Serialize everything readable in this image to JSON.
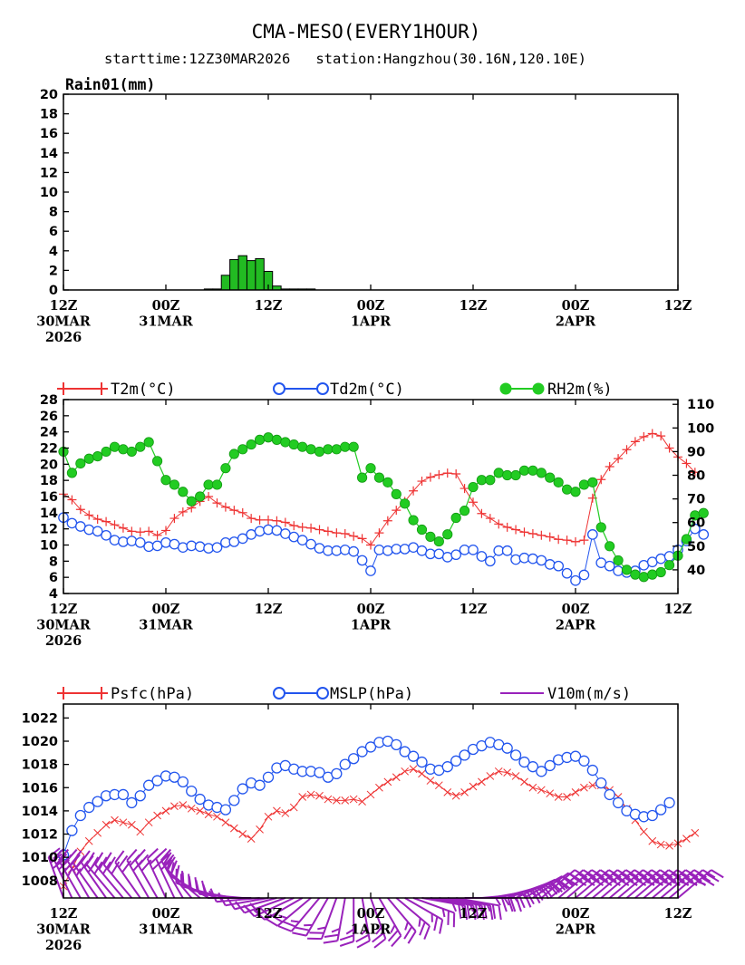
{
  "header": {
    "title": "CMA-MESO(EVERY1HOUR)",
    "subtitle": "starttime:12Z30MAR2026   station:Hangzhou(30.16N,120.10E)"
  },
  "colors": {
    "t2m": "#ee3333",
    "td2m": "#2255ee",
    "rh2m": "#22cc22",
    "rain": "#22bb22",
    "wind": "#9922bb",
    "axis": "#000000"
  },
  "x_ticks": [
    {
      "hour": 0,
      "lines": [
        "12Z",
        "30MAR",
        "2026"
      ]
    },
    {
      "hour": 12,
      "lines": [
        "00Z",
        "31MAR"
      ]
    },
    {
      "hour": 24,
      "lines": [
        "12Z"
      ]
    },
    {
      "hour": 36,
      "lines": [
        "00Z",
        "1APR"
      ]
    },
    {
      "hour": 48,
      "lines": [
        "12Z"
      ]
    },
    {
      "hour": 60,
      "lines": [
        "00Z",
        "2APR"
      ]
    },
    {
      "hour": 72,
      "lines": [
        "12Z"
      ]
    }
  ],
  "chart_data": [
    {
      "id": "rain",
      "type": "bar",
      "title": "Rain01(mm)",
      "x_hours": [
        17,
        18,
        19,
        20,
        21,
        22,
        23,
        24,
        25,
        26,
        27,
        28,
        29
      ],
      "values": [
        0.1,
        0.1,
        1.5,
        3.1,
        3.5,
        3.0,
        3.2,
        1.9,
        0.4,
        0.1,
        0.1,
        0.1,
        0.1
      ],
      "ylim": [
        0,
        20
      ],
      "yticks": [
        0,
        2,
        4,
        6,
        8,
        10,
        12,
        14,
        16,
        18,
        20
      ],
      "xlim": [
        0,
        72
      ]
    },
    {
      "id": "temp",
      "type": "line",
      "xlim": [
        0,
        72
      ],
      "y_left": {
        "ylim": [
          4,
          28
        ],
        "ticks": [
          4,
          6,
          8,
          10,
          12,
          14,
          16,
          18,
          20,
          22,
          24,
          26,
          28
        ]
      },
      "y_right": {
        "ylim": [
          30,
          112
        ],
        "ticks": [
          40,
          50,
          60,
          70,
          80,
          90,
          100,
          110
        ]
      },
      "legend": [
        {
          "label": "T2m(°C)",
          "key": "t2m"
        },
        {
          "label": "Td2m(°C)",
          "key": "td2m"
        },
        {
          "label": "RH2m(%)",
          "key": "rh2m"
        }
      ],
      "series": [
        {
          "name": "T2m(°C)",
          "axis": "left",
          "values": [
            16.3,
            15.6,
            14.4,
            13.7,
            13.2,
            12.9,
            12.5,
            12.1,
            11.7,
            11.6,
            11.7,
            11.2,
            11.8,
            13.3,
            14.1,
            14.6,
            15.4,
            16.0,
            15.2,
            14.7,
            14.3,
            14.0,
            13.3,
            13.1,
            13.1,
            13.0,
            12.8,
            12.4,
            12.2,
            12.1,
            11.9,
            11.7,
            11.5,
            11.4,
            11.1,
            10.8,
            10.0,
            11.5,
            13.0,
            14.3,
            15.4,
            16.7,
            17.9,
            18.4,
            18.7,
            18.9,
            18.8,
            17.0,
            15.3,
            13.9,
            13.3,
            12.6,
            12.2,
            11.9,
            11.6,
            11.4,
            11.2,
            11.0,
            10.7,
            10.6,
            10.4,
            10.6,
            15.8,
            18.1,
            19.7,
            20.7,
            21.8,
            22.8,
            23.4,
            23.8,
            23.5,
            22.0,
            20.9,
            20.1,
            19.0
          ]
        },
        {
          "name": "Td2m(°C)",
          "axis": "left",
          "values": [
            13.4,
            12.7,
            12.3,
            11.9,
            11.7,
            11.2,
            10.6,
            10.4,
            10.5,
            10.3,
            9.8,
            9.9,
            10.3,
            10.1,
            9.7,
            9.9,
            9.8,
            9.6,
            9.7,
            10.3,
            10.4,
            10.8,
            11.3,
            11.7,
            11.9,
            11.8,
            11.4,
            11.0,
            10.6,
            10.1,
            9.6,
            9.3,
            9.3,
            9.4,
            9.2,
            8.1,
            6.8,
            9.4,
            9.3,
            9.5,
            9.5,
            9.7,
            9.3,
            8.9,
            8.9,
            8.5,
            8.8,
            9.4,
            9.4,
            8.6,
            8.0,
            9.3,
            9.3,
            8.2,
            8.4,
            8.3,
            8.1,
            7.6,
            7.4,
            6.5,
            5.6,
            6.3,
            11.3,
            7.8,
            7.4,
            6.8,
            6.6,
            6.8,
            7.5,
            7.9,
            8.3,
            8.6,
            9.4,
            10.5,
            12.0,
            11.3
          ]
        },
        {
          "name": "RH2m(%)",
          "axis": "right",
          "values": [
            90,
            81,
            85,
            87,
            88,
            90,
            92,
            91,
            90,
            92,
            94,
            86,
            78,
            76,
            73,
            69,
            71,
            76,
            76,
            83,
            89,
            91,
            93,
            95,
            96,
            95,
            94,
            93,
            92,
            91,
            90,
            91,
            91,
            92,
            92,
            79,
            83,
            79,
            77,
            72,
            68,
            61,
            57,
            54,
            52,
            55,
            62,
            65,
            75,
            78,
            78,
            81,
            80,
            80,
            82,
            82,
            81,
            79,
            77,
            74,
            73,
            76,
            77,
            58,
            50,
            44,
            40,
            38,
            37,
            38,
            39,
            42,
            46,
            53,
            63,
            64
          ]
        }
      ]
    },
    {
      "id": "pressure",
      "type": "line",
      "xlim": [
        0,
        72
      ],
      "ylim": [
        1006.5,
        1023.2
      ],
      "yticks": [
        1008,
        1010,
        1012,
        1014,
        1016,
        1018,
        1020,
        1022
      ],
      "legend": [
        {
          "label": "Psfc(hPa)",
          "key": "t2m"
        },
        {
          "label": "MSLP(hPa)",
          "key": "td2m"
        },
        {
          "label": "V10m(m/s)",
          "key": "wind"
        }
      ],
      "series": [
        {
          "name": "Psfc(hPa)",
          "values": [
            1007.5,
            1009.0,
            1010.5,
            1011.4,
            1012.1,
            1012.8,
            1013.2,
            1013.0,
            1012.8,
            1012.2,
            1013.0,
            1013.6,
            1014.0,
            1014.4,
            1014.5,
            1014.2,
            1014.0,
            1013.7,
            1013.5,
            1013.0,
            1012.5,
            1012.0,
            1011.6,
            1012.4,
            1013.5,
            1014.0,
            1013.8,
            1014.3,
            1015.2,
            1015.4,
            1015.3,
            1015.0,
            1014.9,
            1014.9,
            1015.0,
            1014.8,
            1015.4,
            1016.0,
            1016.5,
            1016.9,
            1017.4,
            1017.6,
            1017.2,
            1016.6,
            1016.2,
            1015.6,
            1015.3,
            1015.6,
            1016.1,
            1016.5,
            1017.0,
            1017.4,
            1017.3,
            1017.0,
            1016.5,
            1016.0,
            1015.8,
            1015.5,
            1015.2,
            1015.2,
            1015.6,
            1016.0,
            1016.2,
            1016.2,
            1015.8,
            1015.2,
            1014.2,
            1013.2,
            1012.2,
            1011.4,
            1011.1,
            1011.0,
            1011.2,
            1011.6,
            1012.1
          ]
        },
        {
          "name": "MSLP(hPa)",
          "values": [
            1010.2,
            1012.3,
            1013.6,
            1014.3,
            1014.8,
            1015.3,
            1015.4,
            1015.4,
            1014.7,
            1015.3,
            1016.2,
            1016.6,
            1017.0,
            1016.9,
            1016.5,
            1015.7,
            1015.0,
            1014.5,
            1014.3,
            1014.1,
            1014.9,
            1015.9,
            1016.4,
            1016.2,
            1016.9,
            1017.7,
            1017.9,
            1017.6,
            1017.4,
            1017.4,
            1017.3,
            1016.9,
            1017.2,
            1018.0,
            1018.5,
            1019.1,
            1019.5,
            1019.9,
            1020.0,
            1019.7,
            1019.1,
            1018.7,
            1018.2,
            1017.6,
            1017.5,
            1017.8,
            1018.3,
            1018.8,
            1019.3,
            1019.6,
            1019.9,
            1019.7,
            1019.4,
            1018.8,
            1018.2,
            1017.8,
            1017.4,
            1017.9,
            1018.4,
            1018.6,
            1018.7,
            1018.3,
            1017.5,
            1016.4,
            1015.4,
            1014.7,
            1014.0,
            1013.7,
            1013.5,
            1013.6,
            1014.1,
            1014.7
          ]
        }
      ],
      "wind_series": {
        "name": "V10m(m/s)",
        "x_hours": [
          0,
          1,
          2,
          3,
          4,
          5,
          6,
          7,
          8,
          9,
          10,
          11,
          12,
          13,
          14,
          15,
          16,
          17,
          18,
          19,
          20,
          21,
          22,
          23,
          24,
          25,
          26,
          27,
          28,
          29,
          30,
          31,
          32,
          33,
          34,
          35,
          36,
          37,
          38,
          39,
          40,
          41,
          42,
          43,
          44,
          45,
          46,
          47,
          48,
          49,
          50,
          51,
          52,
          53,
          54,
          55,
          56,
          57,
          58,
          59,
          60,
          61,
          62,
          63,
          64,
          65,
          66,
          67,
          68,
          69,
          70,
          71,
          72
        ],
        "from_direction_deg": [
          340,
          335,
          330,
          330,
          325,
          325,
          320,
          320,
          320,
          325,
          330,
          330,
          335,
          335,
          330,
          320,
          310,
          300,
          290,
          285,
          280,
          275,
          270,
          265,
          260,
          255,
          250,
          245,
          240,
          230,
          220,
          210,
          200,
          190,
          180,
          170,
          160,
          150,
          140,
          130,
          120,
          110,
          100,
          100,
          100,
          100,
          100,
          90,
          90,
          85,
          80,
          75,
          70,
          65,
          60,
          55,
          50,
          50,
          50,
          50,
          50,
          50,
          50,
          50,
          50,
          50,
          50,
          50,
          50,
          50,
          50,
          50,
          50
        ],
        "speed": [
          6,
          7,
          7,
          7,
          6,
          6,
          6,
          6,
          6,
          6,
          6,
          6,
          6,
          6,
          5,
          5,
          5,
          5,
          4,
          4,
          4,
          4,
          3,
          3,
          2,
          2,
          3,
          4,
          4,
          5,
          5,
          5,
          5,
          5,
          5,
          5,
          5,
          5,
          5,
          5,
          5,
          5,
          5,
          5,
          5,
          5,
          5,
          5,
          5,
          5,
          5,
          5,
          5,
          5,
          6,
          6,
          6,
          6,
          6,
          6,
          6,
          6,
          6,
          6,
          6,
          6,
          7,
          7,
          7,
          7,
          7,
          7,
          7
        ]
      }
    }
  ]
}
